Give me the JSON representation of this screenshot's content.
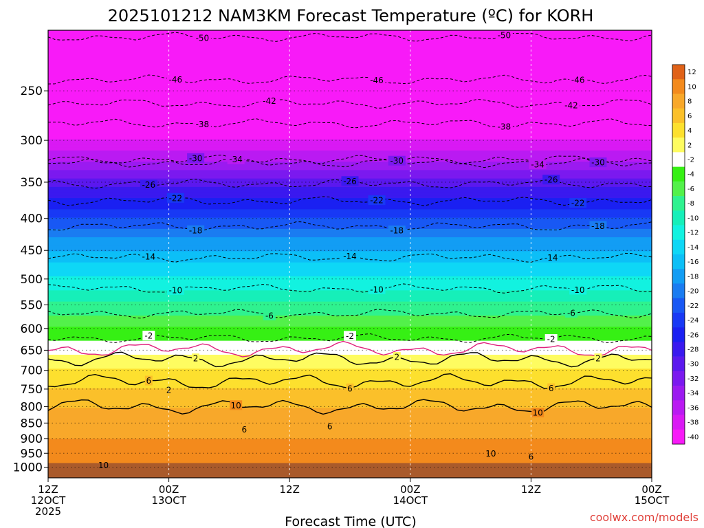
{
  "chart_data": {
    "type": "heatmap",
    "title": "2025101212 NAM3KM Forecast Temperature (ºC) for KORH",
    "xlabel": "Forecast Time (UTC)",
    "ylabel": "",
    "y_scale": "log",
    "ylim": [
      1040,
      200
    ],
    "y_ticks": [
      250,
      300,
      350,
      400,
      450,
      500,
      550,
      600,
      650,
      700,
      750,
      800,
      850,
      900,
      950,
      1000
    ],
    "x_ticks": [
      {
        "hour": 0,
        "line1": "12Z",
        "line2": "12OCT",
        "line3": "2025"
      },
      {
        "hour": 12,
        "line1": "00Z",
        "line2": "13OCT",
        "line3": ""
      },
      {
        "hour": 24,
        "line1": "12Z",
        "line2": "",
        "line3": ""
      },
      {
        "hour": 36,
        "line1": "00Z",
        "line2": "14OCT",
        "line3": ""
      },
      {
        "hour": 48,
        "line1": "12Z",
        "line2": "",
        "line3": ""
      },
      {
        "hour": 60,
        "line1": "00Z",
        "line2": "15OCT",
        "line3": ""
      }
    ],
    "x_range_hours": [
      0,
      60
    ],
    "grid": true,
    "surface_pressure": 985,
    "temperature_profile": [
      {
        "p": 200,
        "t": -54
      },
      {
        "p": 230,
        "t": -49
      },
      {
        "p": 250,
        "t": -46
      },
      {
        "p": 275,
        "t": -41
      },
      {
        "p": 300,
        "t": -38
      },
      {
        "p": 330,
        "t": -33
      },
      {
        "p": 350,
        "t": -29
      },
      {
        "p": 380,
        "t": -25
      },
      {
        "p": 400,
        "t": -22
      },
      {
        "p": 430,
        "t": -18
      },
      {
        "p": 470,
        "t": -14
      },
      {
        "p": 520,
        "t": -10
      },
      {
        "p": 570,
        "t": -6
      },
      {
        "p": 630,
        "t": -2
      },
      {
        "p": 660,
        "t": 2
      },
      {
        "p": 720,
        "t": 5
      },
      {
        "p": 800,
        "t": 8
      },
      {
        "p": 900,
        "t": 10
      },
      {
        "p": 1000,
        "t": 12
      }
    ],
    "contours": [
      {
        "value": -50,
        "style": "dashed",
        "base_p": 205,
        "labels": [
          "-50",
          "-50"
        ]
      },
      {
        "value": -46,
        "style": "dashed",
        "base_p": 240,
        "labels": [
          "-46",
          "-46",
          "-46"
        ]
      },
      {
        "value": -42,
        "style": "dashed",
        "base_p": 262,
        "labels": [
          "-42",
          "-42"
        ]
      },
      {
        "value": -38,
        "style": "dashed",
        "base_p": 282,
        "labels": [
          "-38",
          "-38"
        ]
      },
      {
        "value": -34,
        "style": "dashed",
        "base_p": 326,
        "labels": [
          "-34",
          "-34"
        ]
      },
      {
        "value": -30,
        "style": "dashed",
        "base_p": 322,
        "labels": [
          "-30",
          "-30",
          "-30"
        ]
      },
      {
        "value": -26,
        "style": "dashed",
        "base_p": 352,
        "labels": [
          "-26",
          "-26",
          "-26"
        ]
      },
      {
        "value": -22,
        "style": "dashed",
        "base_p": 375,
        "labels": [
          "-22",
          "-22",
          "-22"
        ]
      },
      {
        "value": -18,
        "style": "dashed",
        "base_p": 412,
        "labels": [
          "-18",
          "-18",
          "-18"
        ]
      },
      {
        "value": -14,
        "style": "dashed",
        "base_p": 462,
        "labels": [
          "-14",
          "-14",
          "-14"
        ]
      },
      {
        "value": -10,
        "style": "dashed",
        "base_p": 518,
        "labels": [
          "-10",
          "-10",
          "-10"
        ]
      },
      {
        "value": -6,
        "style": "dashed",
        "base_p": 568,
        "labels": [
          "-6",
          "-6"
        ]
      },
      {
        "value": -2,
        "style": "dashed",
        "base_p": 622,
        "labels": [
          "-2",
          "-2",
          "-2"
        ]
      },
      {
        "value": 0,
        "style": "freezing",
        "base_p": 648,
        "labels": []
      },
      {
        "value": 2,
        "style": "solid",
        "base_p": 672,
        "labels": [
          "2",
          "2",
          "2"
        ]
      },
      {
        "value": 6,
        "style": "solid",
        "base_p": 730,
        "labels": [
          "6",
          "6",
          "6"
        ]
      },
      {
        "value": 10,
        "style": "solid",
        "base_p": 800,
        "labels": [
          "10",
          "10"
        ]
      }
    ],
    "extra_labels": [
      {
        "text": "6",
        "hour": 19.5,
        "p": 870
      },
      {
        "text": "6",
        "hour": 28.0,
        "p": 860
      },
      {
        "text": "10",
        "hour": 5.5,
        "p": 993
      },
      {
        "text": "10",
        "hour": 44.0,
        "p": 950
      },
      {
        "text": "6",
        "hour": 48.0,
        "p": 962
      },
      {
        "text": "2",
        "hour": 12.0,
        "p": 752
      }
    ],
    "colorbar": {
      "bins": [
        {
          "label": "12",
          "color": "#e06218"
        },
        {
          "label": "10",
          "color": "#f38a1c"
        },
        {
          "label": "8",
          "color": "#f8a82a"
        },
        {
          "label": "6",
          "color": "#fbc02a"
        },
        {
          "label": "4",
          "color": "#fde02e"
        },
        {
          "label": "2",
          "color": "#fefc60"
        },
        {
          "label": "-2",
          "color": "#ffffff"
        },
        {
          "label": "-4",
          "color": "#36f014"
        },
        {
          "label": "-6",
          "color": "#53f14a"
        },
        {
          "label": "-8",
          "color": "#2ff28f"
        },
        {
          "label": "-10",
          "color": "#16efb9"
        },
        {
          "label": "-12",
          "color": "#12f2e0"
        },
        {
          "label": "-14",
          "color": "#0ed7f6"
        },
        {
          "label": "-16",
          "color": "#0cbff7"
        },
        {
          "label": "-18",
          "color": "#129df4"
        },
        {
          "label": "-20",
          "color": "#1a7cf1"
        },
        {
          "label": "-22",
          "color": "#1858f4"
        },
        {
          "label": "-24",
          "color": "#1839f5"
        },
        {
          "label": "-26",
          "color": "#1a20f2"
        },
        {
          "label": "-28",
          "color": "#3a19ef"
        },
        {
          "label": "-30",
          "color": "#5b18ee"
        },
        {
          "label": "-32",
          "color": "#7b19ef"
        },
        {
          "label": "-34",
          "color": "#9b1af0"
        },
        {
          "label": "-36",
          "color": "#ba1af2"
        },
        {
          "label": "-38",
          "color": "#d919f4"
        },
        {
          "label": "-40",
          "color": "#f81af8"
        }
      ],
      "above_color": "#f81af8",
      "ground_color": "#a95a2b"
    }
  },
  "credit": "coolwx.com/models"
}
